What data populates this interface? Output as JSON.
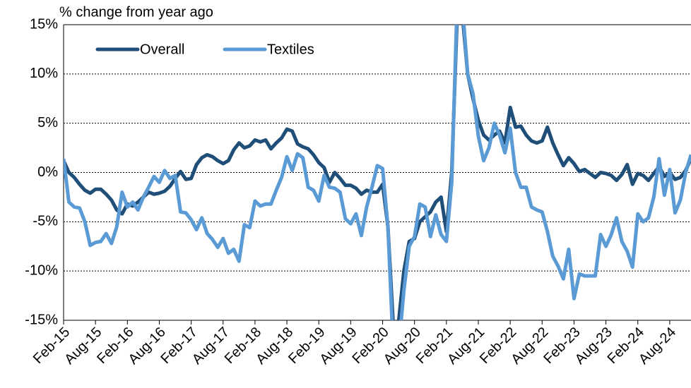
{
  "chart_data": {
    "type": "line",
    "y_axis_label": "% change from year ago",
    "categories": [
      "Feb-15",
      null,
      null,
      null,
      null,
      null,
      "Aug-15",
      null,
      null,
      null,
      null,
      null,
      "Feb-16",
      null,
      null,
      null,
      null,
      null,
      "Aug-16",
      null,
      null,
      null,
      null,
      null,
      "Feb-17",
      null,
      null,
      null,
      null,
      null,
      "Aug-17",
      null,
      null,
      null,
      null,
      null,
      "Feb-18",
      null,
      null,
      null,
      null,
      null,
      "Aug-18",
      null,
      null,
      null,
      null,
      null,
      "Feb-19",
      null,
      null,
      null,
      null,
      null,
      "Aug-19",
      null,
      null,
      null,
      null,
      null,
      "Feb-20",
      null,
      null,
      null,
      null,
      null,
      "Aug-20",
      null,
      null,
      null,
      null,
      null,
      "Feb-21",
      null,
      null,
      null,
      null,
      null,
      "Aug-21",
      null,
      null,
      null,
      null,
      null,
      "Feb-22",
      null,
      null,
      null,
      null,
      null,
      "Aug-22",
      null,
      null,
      null,
      null,
      null,
      "Feb-23",
      null,
      null,
      null,
      null,
      null,
      "Aug-23",
      null,
      null,
      null,
      null,
      null,
      "Feb-24",
      null,
      null,
      null,
      null,
      null,
      "Aug-24",
      null,
      null,
      null,
      null
    ],
    "series": [
      {
        "name": "Overall",
        "color": "#1f4e79",
        "values": [
          1.2,
          0,
          -0.5,
          -1.2,
          -1.8,
          -2.1,
          -1.7,
          -1.7,
          -2.2,
          -2.8,
          -3.8,
          -4.2,
          -3.2,
          -3.4,
          -3.0,
          -2.5,
          -2.0,
          -2.2,
          -2.1,
          -1.9,
          -1.4,
          -0.6,
          0.1,
          -0.7,
          -0.6,
          0.8,
          1.5,
          1.8,
          1.6,
          1.2,
          0.9,
          1.2,
          2.3,
          3.0,
          2.5,
          2.7,
          3.3,
          3.1,
          3.3,
          2.4,
          3.0,
          3.5,
          4.4,
          4.2,
          2.9,
          2.6,
          2.4,
          1.8,
          1.0,
          0.5,
          -1.0,
          0.0,
          -0.6,
          -1.3,
          -1.3,
          -1.6,
          -2.2,
          -1.8,
          -2.0,
          -2.0,
          -1.2,
          -5.5,
          -15.5,
          -15.2,
          -10,
          -7,
          -6.7,
          -5,
          -4.5,
          -4,
          -3,
          -2.5,
          -6,
          0,
          15.5,
          16,
          10,
          7.5,
          5.3,
          3.8,
          3.3,
          3.8,
          4.2,
          3.0,
          6.6,
          4.6,
          4.7,
          3.8,
          3.2,
          3.0,
          3.2,
          4.6,
          3.0,
          1.8,
          0.7,
          1.5,
          0.9,
          0.1,
          0.3,
          -0.1,
          -0.5,
          0.0,
          -0.1,
          -0.3,
          -0.8,
          -0.2,
          0.8,
          -1.2,
          -0.1,
          -0.3,
          -0.8,
          -0.1,
          0.6,
          -0.4,
          0.0,
          -0.7,
          -0.5,
          0.2,
          1.4
        ]
      },
      {
        "name": "Textiles",
        "color": "#5b9bd5",
        "values": [
          1.4,
          -3.0,
          -3.5,
          -3.6,
          -5.0,
          -7.4,
          -7.1,
          -7.0,
          -6.2,
          -7.2,
          -5.5,
          -2.0,
          -3.5,
          -3.0,
          -3.8,
          -2.5,
          -1.5,
          -0.4,
          -1.0,
          0.2,
          -0.6,
          -0.3,
          -4.0,
          -4.1,
          -4.8,
          -5.8,
          -4.6,
          -6.2,
          -6.8,
          -7.6,
          -6.7,
          -8.2,
          -7.8,
          -9.0,
          -5.3,
          -5.6,
          -2.9,
          -3.4,
          -3.2,
          -3.2,
          -1.8,
          -0.5,
          1.6,
          0.2,
          1.9,
          1.5,
          -1.5,
          -1.8,
          -2.9,
          -0.3,
          -1.5,
          -1.6,
          -2.0,
          -4.7,
          -5.2,
          -4.2,
          -6.4,
          -3.5,
          -1.5,
          0.7,
          0.4,
          -5.5,
          -18,
          -18,
          -12,
          -7.5,
          -6.5,
          -3.2,
          -3.5,
          -6.5,
          -4.3,
          -6.3,
          -7.0,
          -1.0,
          17,
          17,
          10,
          8,
          3.7,
          1.2,
          2.5,
          5.0,
          3.8,
          2.0,
          4.5,
          0.0,
          -1.5,
          -1.5,
          -3.5,
          -3.8,
          -4.0,
          -6.0,
          -8.5,
          -9.5,
          -10.8,
          -7.8,
          -12.8,
          -10.3,
          -10.5,
          -10.5,
          -10.5,
          -6.3,
          -7.5,
          -6.3,
          -4.6,
          -7.0,
          -8.0,
          -9.6,
          -4.2,
          -5.0,
          -4.6,
          -2.5,
          1.4,
          -2.3,
          0.3,
          -4.1,
          -2.8,
          0.0,
          1.8
        ]
      }
    ],
    "ylim": [
      -15,
      15
    ],
    "yticks": [
      {
        "value": -15,
        "label": "-15%"
      },
      {
        "value": -10,
        "label": "-10%"
      },
      {
        "value": -5,
        "label": "-5%"
      },
      {
        "value": 0,
        "label": "0%"
      },
      {
        "value": 5,
        "label": "5%"
      },
      {
        "value": 10,
        "label": "10%"
      },
      {
        "value": 15,
        "label": "15%"
      }
    ],
    "grid": true,
    "legend": "top-left"
  }
}
